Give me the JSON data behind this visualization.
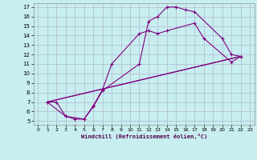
{
  "xlabel": "Windchill (Refroidissement éolien,°C)",
  "xlim": [
    -0.5,
    23.5
  ],
  "ylim": [
    4.6,
    17.4
  ],
  "xticks": [
    0,
    1,
    2,
    3,
    4,
    5,
    6,
    7,
    8,
    9,
    10,
    11,
    12,
    13,
    14,
    15,
    16,
    17,
    18,
    19,
    20,
    21,
    22,
    23
  ],
  "yticks": [
    5,
    6,
    7,
    8,
    9,
    10,
    11,
    12,
    13,
    14,
    15,
    16,
    17
  ],
  "bg_color": "#c8eef0",
  "line_color": "#800080",
  "grid_color": "#b0b8d0",
  "curve1_x": [
    1,
    2,
    3,
    4,
    5,
    6,
    7,
    11,
    12,
    13,
    14,
    15,
    16,
    17,
    20,
    21,
    22
  ],
  "curve1_y": [
    7.0,
    7.0,
    5.5,
    5.2,
    5.2,
    6.5,
    8.2,
    11.0,
    15.5,
    16.0,
    17.0,
    17.0,
    16.7,
    16.5,
    13.7,
    12.0,
    11.8
  ],
  "curve2_x": [
    1,
    3,
    5,
    6,
    7,
    8,
    11,
    12,
    13,
    14,
    17,
    18,
    21,
    22
  ],
  "curve2_y": [
    7.0,
    5.5,
    5.2,
    6.6,
    8.3,
    11.0,
    14.2,
    14.5,
    14.2,
    14.5,
    15.3,
    13.7,
    11.2,
    11.8
  ],
  "line3_x": [
    1,
    22
  ],
  "line3_y": [
    7.0,
    11.8
  ],
  "line4_x": [
    1,
    22
  ],
  "line4_y": [
    7.0,
    11.8
  ]
}
